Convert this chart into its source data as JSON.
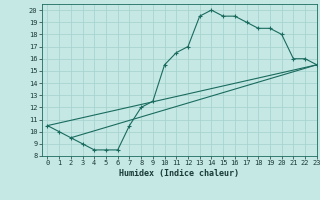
{
  "xlabel": "Humidex (Indice chaleur)",
  "xlim": [
    -0.5,
    23
  ],
  "ylim": [
    8,
    20.5
  ],
  "xticks": [
    0,
    1,
    2,
    3,
    4,
    5,
    6,
    7,
    8,
    9,
    10,
    11,
    12,
    13,
    14,
    15,
    16,
    17,
    18,
    19,
    20,
    21,
    22,
    23
  ],
  "yticks": [
    8,
    9,
    10,
    11,
    12,
    13,
    14,
    15,
    16,
    17,
    18,
    19,
    20
  ],
  "bg_color": "#c5e8e5",
  "grid_color": "#a8d4d0",
  "line_color": "#1a6b5e",
  "line1_x": [
    0,
    1,
    2,
    3,
    4,
    5,
    6,
    7,
    8,
    9,
    10,
    11,
    12,
    13,
    14,
    15,
    16,
    17,
    18,
    19,
    20,
    21,
    22,
    23
  ],
  "line1_y": [
    10.5,
    10.0,
    9.5,
    9.0,
    8.5,
    8.5,
    8.5,
    10.5,
    12.0,
    12.5,
    15.5,
    16.5,
    17.0,
    19.5,
    20.0,
    19.5,
    19.5,
    19.0,
    18.5,
    18.5,
    18.0,
    16.0,
    16.0,
    15.5
  ],
  "line2_x": [
    0,
    23
  ],
  "line2_y": [
    10.5,
    15.5
  ],
  "line3_x": [
    2,
    23
  ],
  "line3_y": [
    9.5,
    15.5
  ],
  "tick_fontsize": 5.0,
  "label_fontsize": 6.0
}
